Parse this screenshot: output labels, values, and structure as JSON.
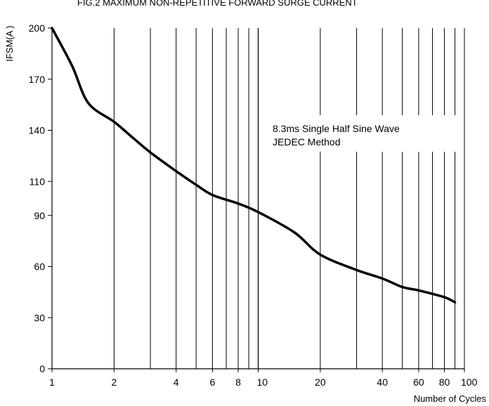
{
  "chart_data": {
    "type": "line",
    "title": "FIG.2 MAXIMUM NON-REPETITIVE FORWARD SURGE CURRENT",
    "xlabel": "Number of Cycles",
    "ylabel": "IFSM(A )",
    "x_scale": "log",
    "xlim": [
      1,
      100
    ],
    "ylim": [
      0,
      200
    ],
    "x_ticks": [
      1,
      2,
      4,
      6,
      8,
      10,
      20,
      40,
      60,
      80,
      100
    ],
    "x_tick_labels": [
      "1",
      "2",
      "4",
      "6",
      "8",
      "10",
      "20",
      "40",
      "60",
      "80",
      "100"
    ],
    "y_ticks": [
      0,
      30,
      60,
      90,
      110,
      140,
      170,
      200
    ],
    "y_tick_labels": [
      "0",
      "30",
      "60",
      "90",
      "110",
      "140",
      "170",
      "200"
    ],
    "grid": true,
    "annotation": [
      "8.3ms Single Half Sine Wave",
      "JEDEC Method"
    ],
    "series": [
      {
        "x": [
          1,
          1.25,
          1.5,
          2,
          2.5,
          3,
          4,
          5,
          6,
          8,
          10,
          15,
          20,
          30,
          40,
          50,
          60,
          80,
          90
        ],
        "y": [
          200,
          178,
          156,
          145,
          135,
          127,
          116,
          108,
          102,
          97,
          92,
          80,
          67,
          58,
          53,
          48,
          46,
          42,
          39
        ]
      }
    ]
  }
}
